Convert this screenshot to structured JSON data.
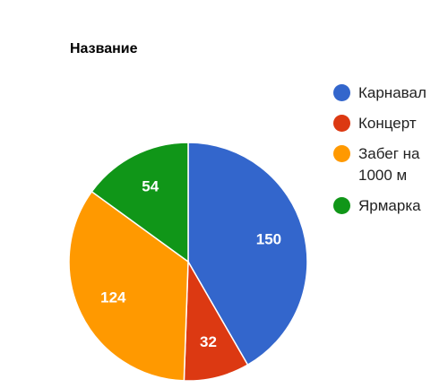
{
  "chart_data": {
    "type": "pie",
    "title": "Название",
    "categories": [
      "Карнавал",
      "Концерт",
      "Забег на 1000 м",
      "Ярмарка"
    ],
    "values": [
      150,
      32,
      124,
      54
    ],
    "colors": [
      "#3366cc",
      "#dc3912",
      "#ff9900",
      "#109618"
    ],
    "legend": "right"
  }
}
